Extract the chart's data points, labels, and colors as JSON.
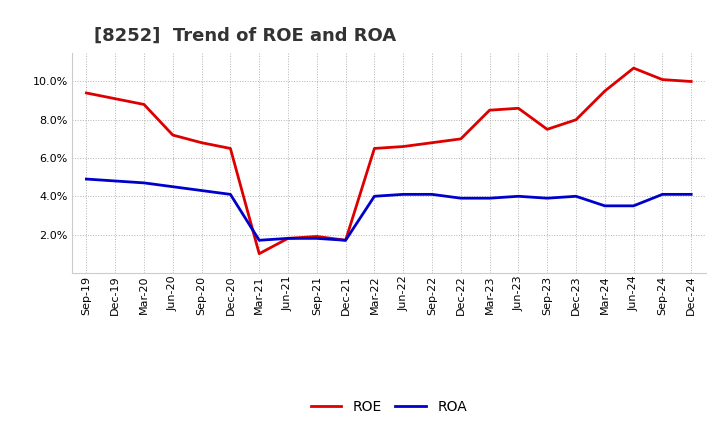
{
  "title": "[8252]  Trend of ROE and ROA",
  "labels": [
    "Sep-19",
    "Dec-19",
    "Mar-20",
    "Jun-20",
    "Sep-20",
    "Dec-20",
    "Mar-21",
    "Jun-21",
    "Sep-21",
    "Dec-21",
    "Mar-22",
    "Jun-22",
    "Sep-22",
    "Dec-22",
    "Mar-23",
    "Jun-23",
    "Sep-23",
    "Dec-23",
    "Mar-24",
    "Jun-24",
    "Sep-24",
    "Dec-24"
  ],
  "ROE": [
    9.4,
    9.1,
    8.8,
    7.2,
    6.8,
    6.5,
    1.0,
    1.8,
    1.9,
    1.7,
    6.5,
    6.6,
    6.8,
    7.0,
    8.5,
    8.6,
    7.5,
    8.0,
    9.5,
    10.7,
    10.1,
    10.0
  ],
  "ROA": [
    4.9,
    4.8,
    4.7,
    4.5,
    4.3,
    4.1,
    1.7,
    1.8,
    1.8,
    1.7,
    4.0,
    4.1,
    4.1,
    3.9,
    3.9,
    4.0,
    3.9,
    4.0,
    3.5,
    3.5,
    4.1,
    4.1
  ],
  "roe_color": "#dd0000",
  "roa_color": "#0000cc",
  "background_color": "#ffffff",
  "grid_color": "#aaaaaa",
  "ylim": [
    0,
    11.5
  ],
  "yticks": [
    2.0,
    4.0,
    6.0,
    8.0,
    10.0
  ],
  "title_fontsize": 13,
  "legend_fontsize": 10,
  "tick_fontsize": 8,
  "line_width": 2.0
}
